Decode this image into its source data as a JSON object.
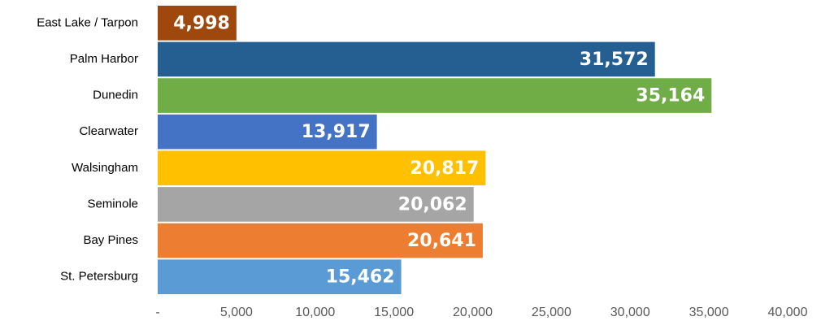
{
  "chart_data": {
    "type": "hbar",
    "categories": [
      "East Lake / Tarpon",
      "Palm Harbor",
      "Dunedin",
      "Clearwater",
      "Walsingham",
      "Seminole",
      "Bay Pines",
      "St. Petersburg"
    ],
    "values": [
      4998,
      31572,
      35164,
      13917,
      20817,
      20062,
      20641,
      15462
    ],
    "value_labels": [
      "4,998",
      "31,572",
      "35,164",
      "13,917",
      "20,817",
      "20,062",
      "20,641",
      "15,462"
    ],
    "colors": [
      "#9e480e",
      "#255e91",
      "#70ad47",
      "#4472c4",
      "#ffc000",
      "#a5a5a5",
      "#ed7d31",
      "#5b9bd5"
    ],
    "xlim": [
      0,
      40000
    ],
    "xticks": [
      {
        "value": 0,
        "label": "-"
      },
      {
        "value": 5000,
        "label": "5,000"
      },
      {
        "value": 10000,
        "label": "10,000"
      },
      {
        "value": 15000,
        "label": "15,000"
      },
      {
        "value": 20000,
        "label": "20,000"
      },
      {
        "value": 25000,
        "label": "25,000"
      },
      {
        "value": 30000,
        "label": "30,000"
      },
      {
        "value": 35000,
        "label": "35,000"
      },
      {
        "value": 40000,
        "label": "40,000"
      }
    ],
    "grid": false
  }
}
